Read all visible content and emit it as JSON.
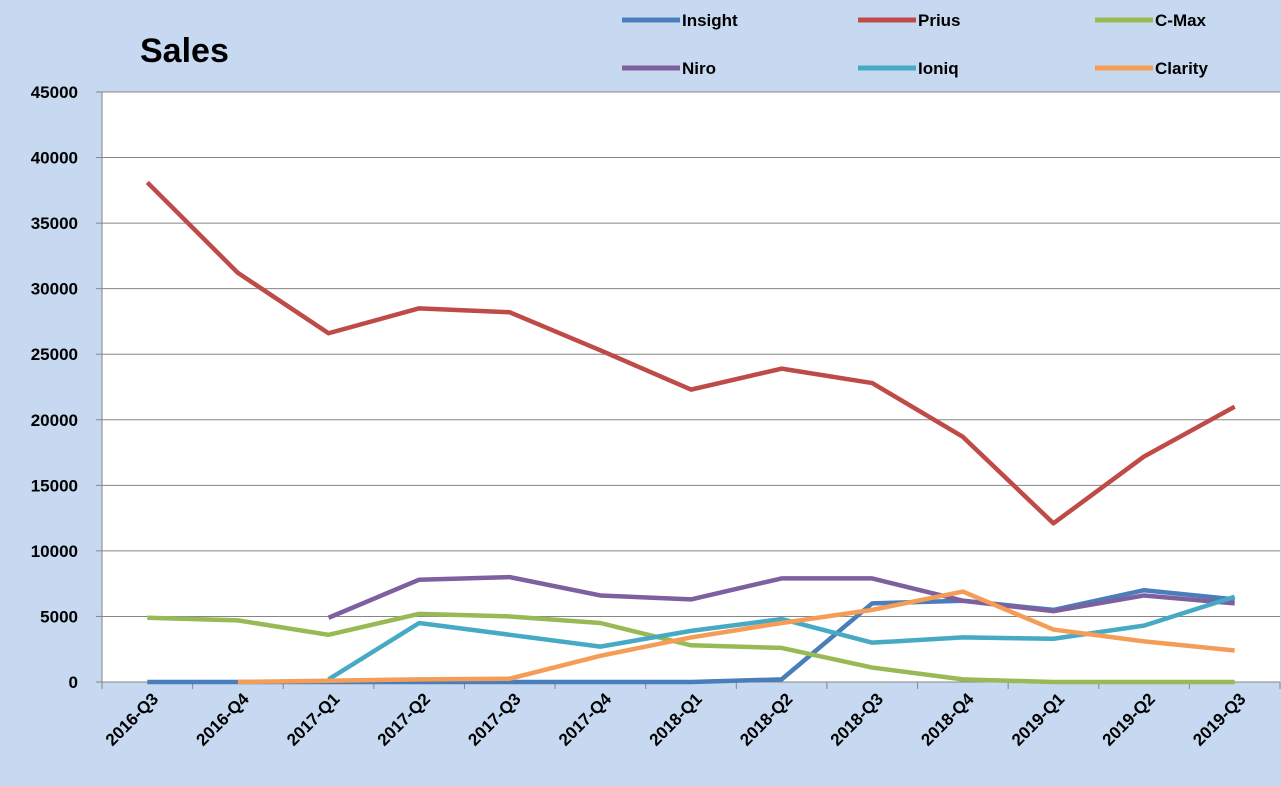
{
  "chart_data": {
    "type": "line",
    "title": "Sales",
    "categories": [
      "2016-Q3",
      "2016-Q4",
      "2017-Q1",
      "2017-Q2",
      "2017-Q3",
      "2017-Q4",
      "2018-Q1",
      "2018-Q2",
      "2018-Q3",
      "2018-Q4",
      "2019-Q1",
      "2019-Q2",
      "2019-Q3"
    ],
    "series": [
      {
        "name": "Insight",
        "color": "#4a7ebb",
        "values": [
          0,
          0,
          0,
          0,
          0,
          0,
          0,
          200,
          6000,
          6200,
          5500,
          7000,
          6300
        ]
      },
      {
        "name": "Prius",
        "color": "#be4b48",
        "values": [
          38100,
          31200,
          26600,
          28500,
          28200,
          25300,
          22300,
          23900,
          22800,
          18700,
          12100,
          17200,
          21000
        ]
      },
      {
        "name": "C-Max",
        "color": "#98b954",
        "values": [
          4900,
          4700,
          3600,
          5200,
          5000,
          4500,
          2800,
          2600,
          1100,
          200,
          0,
          0,
          0
        ]
      },
      {
        "name": "Niro",
        "color": "#7d60a0",
        "values": [
          null,
          null,
          4900,
          7800,
          8000,
          6600,
          6300,
          7900,
          7900,
          6200,
          5400,
          6600,
          6000
        ]
      },
      {
        "name": "Ioniq",
        "color": "#46aac5",
        "values": [
          null,
          null,
          200,
          4500,
          3600,
          2700,
          3900,
          4800,
          3000,
          3400,
          3300,
          4300,
          6500
        ]
      },
      {
        "name": "Clarity",
        "color": "#f59d56",
        "values": [
          null,
          0,
          100,
          200,
          250,
          2000,
          3400,
          4500,
          5500,
          6900,
          4000,
          3100,
          2400
        ]
      }
    ],
    "ylim": [
      0,
      45000
    ],
    "yticks": [
      0,
      5000,
      10000,
      15000,
      20000,
      25000,
      30000,
      35000,
      40000,
      45000
    ],
    "grid": true
  }
}
